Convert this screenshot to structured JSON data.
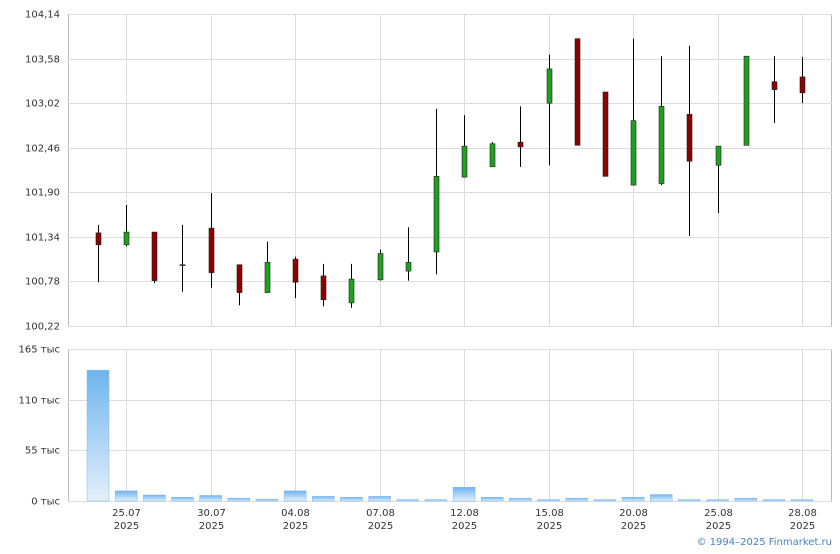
{
  "chart_data": {
    "type": "candlestick",
    "categories": [
      null,
      "25.07",
      null,
      null,
      "30.07",
      null,
      null,
      "04.08",
      null,
      null,
      "07.08",
      null,
      null,
      "12.08",
      null,
      null,
      "15.08",
      null,
      null,
      "20.08",
      null,
      null,
      "25.08",
      null,
      null,
      "28.08"
    ],
    "year": "2025",
    "open": [
      101.39,
      101.24,
      101.4,
      100.99,
      101.45,
      100.99,
      100.64,
      101.06,
      100.85,
      100.51,
      100.8,
      100.91,
      101.15,
      102.09,
      102.22,
      102.53,
      103.02,
      103.83,
      103.16,
      101.99,
      102.01,
      102.88,
      102.24,
      102.49,
      103.29,
      103.35
    ],
    "high": [
      101.49,
      101.74,
      101.4,
      101.49,
      101.89,
      100.99,
      101.28,
      101.09,
      101.0,
      101.0,
      101.18,
      101.46,
      102.95,
      102.87,
      102.53,
      102.98,
      103.63,
      103.83,
      103.16,
      103.83,
      103.61,
      103.74,
      102.48,
      103.61,
      103.61,
      103.6
    ],
    "low": [
      100.77,
      101.22,
      100.76,
      100.65,
      100.7,
      100.48,
      100.64,
      100.57,
      100.47,
      100.45,
      100.79,
      100.79,
      100.87,
      102.09,
      102.22,
      102.22,
      102.24,
      102.49,
      102.1,
      101.99,
      101.99,
      101.35,
      101.64,
      102.49,
      102.77,
      103.02
    ],
    "close": [
      101.24,
      101.4,
      100.79,
      100.99,
      100.89,
      100.64,
      101.02,
      100.77,
      100.55,
      100.81,
      101.13,
      101.02,
      102.1,
      102.48,
      102.51,
      102.47,
      103.45,
      102.49,
      102.1,
      102.8,
      102.98,
      102.29,
      102.48,
      103.61,
      103.19,
      103.15
    ],
    "up_color": "#1fa01f",
    "down_color": "#8b0000",
    "ylim": [
      100.22,
      104.14
    ],
    "yticks": [
      {
        "value": 100.22,
        "label": "100,22"
      },
      {
        "value": 100.78,
        "label": "100,78"
      },
      {
        "value": 101.34,
        "label": "101,34"
      },
      {
        "value": 101.9,
        "label": "101,90"
      },
      {
        "value": 102.46,
        "label": "102,46"
      },
      {
        "value": 103.02,
        "label": "103,02"
      },
      {
        "value": 103.58,
        "label": "103,58"
      },
      {
        "value": 104.14,
        "label": "104,14"
      }
    ],
    "grid": true,
    "volume": {
      "values": [
        142,
        11,
        6.5,
        4,
        6,
        3,
        2,
        11,
        5,
        4,
        5,
        1.5,
        1.5,
        15,
        4,
        3,
        1.5,
        3,
        1.5,
        4,
        7,
        1.5,
        1.5,
        3,
        1.5,
        1.5
      ],
      "color": "#7db9ec",
      "ylim": [
        0,
        165
      ],
      "yticks": [
        {
          "value": 0,
          "label": "0 тыс"
        },
        {
          "value": 55,
          "label": "55 тыс"
        },
        {
          "value": 110,
          "label": "110 тыс"
        },
        {
          "value": 165,
          "label": "165 тыс"
        }
      ]
    }
  },
  "footer": "© 1994–2025 Finmarket.ru"
}
